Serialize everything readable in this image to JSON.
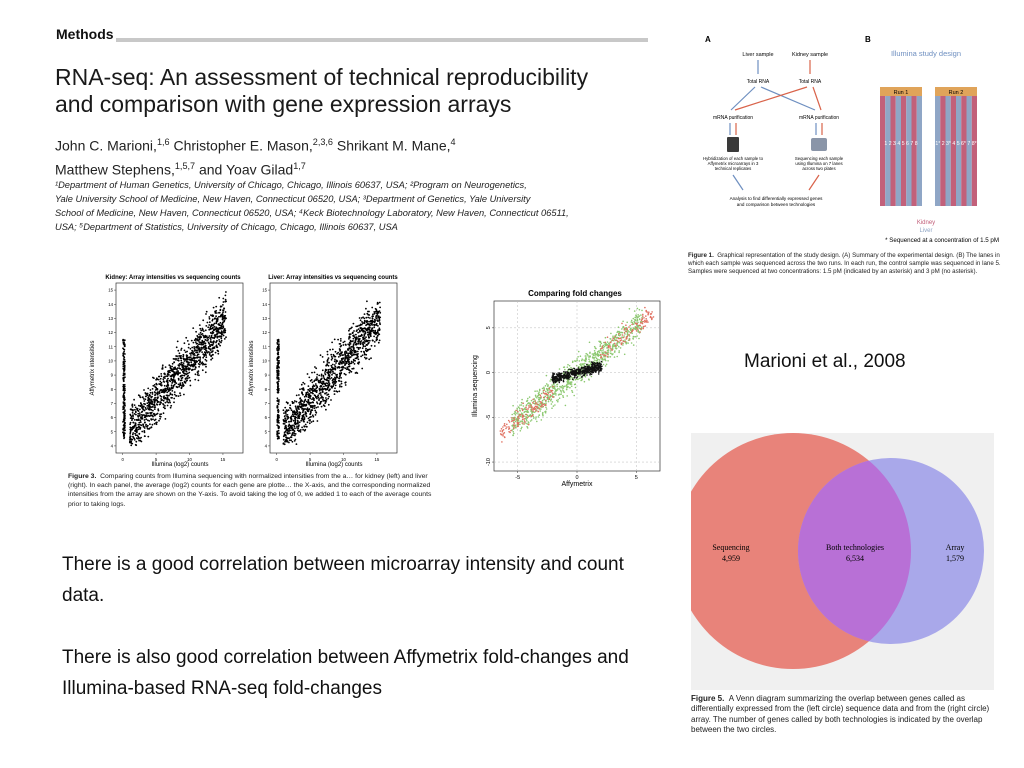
{
  "methods_label": "Methods",
  "paper": {
    "title_line1": "RNA-seq: An assessment of technical reproducibility",
    "title_line2": "and comparison with gene expression arrays",
    "authors_line1": "John C. Marioni,",
    "authors_line1_sup": "1,6",
    "authors_line1b": " Christopher E. Mason,",
    "authors_line1b_sup": "2,3,6",
    "authors_line1c": " Shrikant M. Mane,",
    "authors_line1c_sup": "4",
    "authors_line2": "Matthew Stephens,",
    "authors_line2_sup": "1,5,7",
    "authors_line2b": " and Yoav Gilad",
    "authors_line2b_sup": "1,7",
    "affiliations": [
      "¹Department of Human Genetics, University of Chicago, Chicago, Illinois 60637, USA; ²Program on Neurogenetics,",
      "Yale University School of Medicine, New Haven, Connecticut 06520, USA; ³Department of Genetics, Yale University",
      "School of Medicine, New Haven, Connecticut 06520, USA; ⁴Keck Biotechnology Laboratory, New Haven, Connecticut 06511,",
      "USA; ⁵Department of Statistics, University of Chicago, Chicago, Illinois 60637, USA"
    ]
  },
  "fig1": {
    "panel_a": "A",
    "panel_b": "B",
    "liver_sample": "Liver sample",
    "kidney_sample": "Kidney sample",
    "total_rna": "Total RNA",
    "mrna_purification": "mRNA purification",
    "hyb_text": [
      "Hybridization of each sample to",
      "Affymetrix microarrays in 3",
      "technical replicates"
    ],
    "seq_text": [
      "Sequencing each sample",
      "using Illumina on 7 lanes",
      "across two plates"
    ],
    "analysis_text": [
      "Analysis to find differentially expressed genes",
      "and comparison between technologies"
    ],
    "study_design_title": "Illumina study design",
    "run1": "Run 1",
    "run2": "Run 2",
    "lanes_run1": "1 2 3 4 5 6 7 8",
    "lanes_run2": "1* 2 3* 4 5 6* 7 8*",
    "legend_kidney": "Kidney",
    "legend_liver": "Liver",
    "footnote": "* Sequenced at a concentration of 1.5 pM",
    "caption_bold": "Figure 1.",
    "caption": "Graphical representation of the study design. (A) Summary of the experimental design. (B) The lanes in which each sample was sequenced across the two runs. In each run, the control sample was sequenced in lane 5. Samples were sequenced at two concentrations: 1.5 pM (indicated by an asterisk) and 3 pM (no asterisk).",
    "colors": {
      "kidney": "#c2607a",
      "liver": "#8fa6c6",
      "run_header": "#e0a45a",
      "arrow_red": "#d9634a",
      "arrow_blue": "#6e8fc0"
    }
  },
  "fig3": {
    "kidney_title": "Kidney: Array intensities vs sequencing counts",
    "liver_title": "Liver: Array intensities vs sequencing counts",
    "xlabel": "Illumina (log2) counts",
    "ylabel": "Affymetrix intensities",
    "yticks": [
      "4",
      "5",
      "6",
      "7",
      "8",
      "9",
      "10",
      "11",
      "12",
      "13",
      "14",
      "15"
    ],
    "xticks": [
      "0",
      "5",
      "10",
      "15"
    ],
    "caption_bold": "Figure 3.",
    "caption": "Comparing counts from Illumina sequencing with normalized intensities from the a… for kidney (left) and liver (right). In each panel, the average (log2) counts for each gene are plotte… the X-axis, and the corresponding normalized intensities from the array are shown on the Y-axis. To avoid taking the log of 0, we added 1 to each of the average counts prior to taking logs."
  },
  "chart_data": [
    {
      "type": "scatter",
      "title": "Comparing fold changes",
      "xlabel": "Affymetrix",
      "ylabel": "Illumina sequencing",
      "xticks": [
        "-5",
        "0",
        "5"
      ],
      "yticks": [
        "-10",
        "-5",
        "0",
        "5"
      ],
      "xlim": [
        -7,
        7
      ],
      "ylim": [
        -11,
        8
      ],
      "grid": true,
      "series": [
        {
          "color": "#e07060",
          "trend": [
            [
              -6,
              -8
            ],
            [
              -3,
              -4
            ],
            [
              0,
              0
            ],
            [
              3,
              3.5
            ],
            [
              6,
              6.5
            ]
          ]
        },
        {
          "color": "#8cc870",
          "trend": [
            [
              -5,
              -7
            ],
            [
              -2,
              -3
            ],
            [
              0,
              0
            ],
            [
              2,
              2.5
            ],
            [
              5,
              5.5
            ]
          ]
        },
        {
          "color": "#111111",
          "trend": [
            [
              -1,
              -0.5
            ],
            [
              0,
              0
            ],
            [
              1,
              0.5
            ]
          ]
        }
      ]
    }
  ],
  "venn": {
    "left_label": "Sequencing",
    "left_count": "4,959",
    "center_label": "Both technologies",
    "center_count": "6,534",
    "right_label": "Array",
    "right_count": "1,579",
    "colors": {
      "left": "#e8837a",
      "right": "#a9a8ea",
      "overlap": "#b870d6",
      "background": "#f0f0f0"
    },
    "caption_bold": "Figure 5.",
    "caption": "A Venn diagram summarizing the overlap between genes called as differentially expressed from the (left circle) sequence data and from the (right circle) array. The number of genes called by both technologies is indicated by the overlap between the two circles."
  },
  "attribution": "Marioni et al., 2008",
  "main_text": [
    "There is a good correlation between microarray intensity and count data.",
    "There is also good correlation between Affymetrix fold-changes and Illumina-based RNA-seq fold-changes"
  ]
}
